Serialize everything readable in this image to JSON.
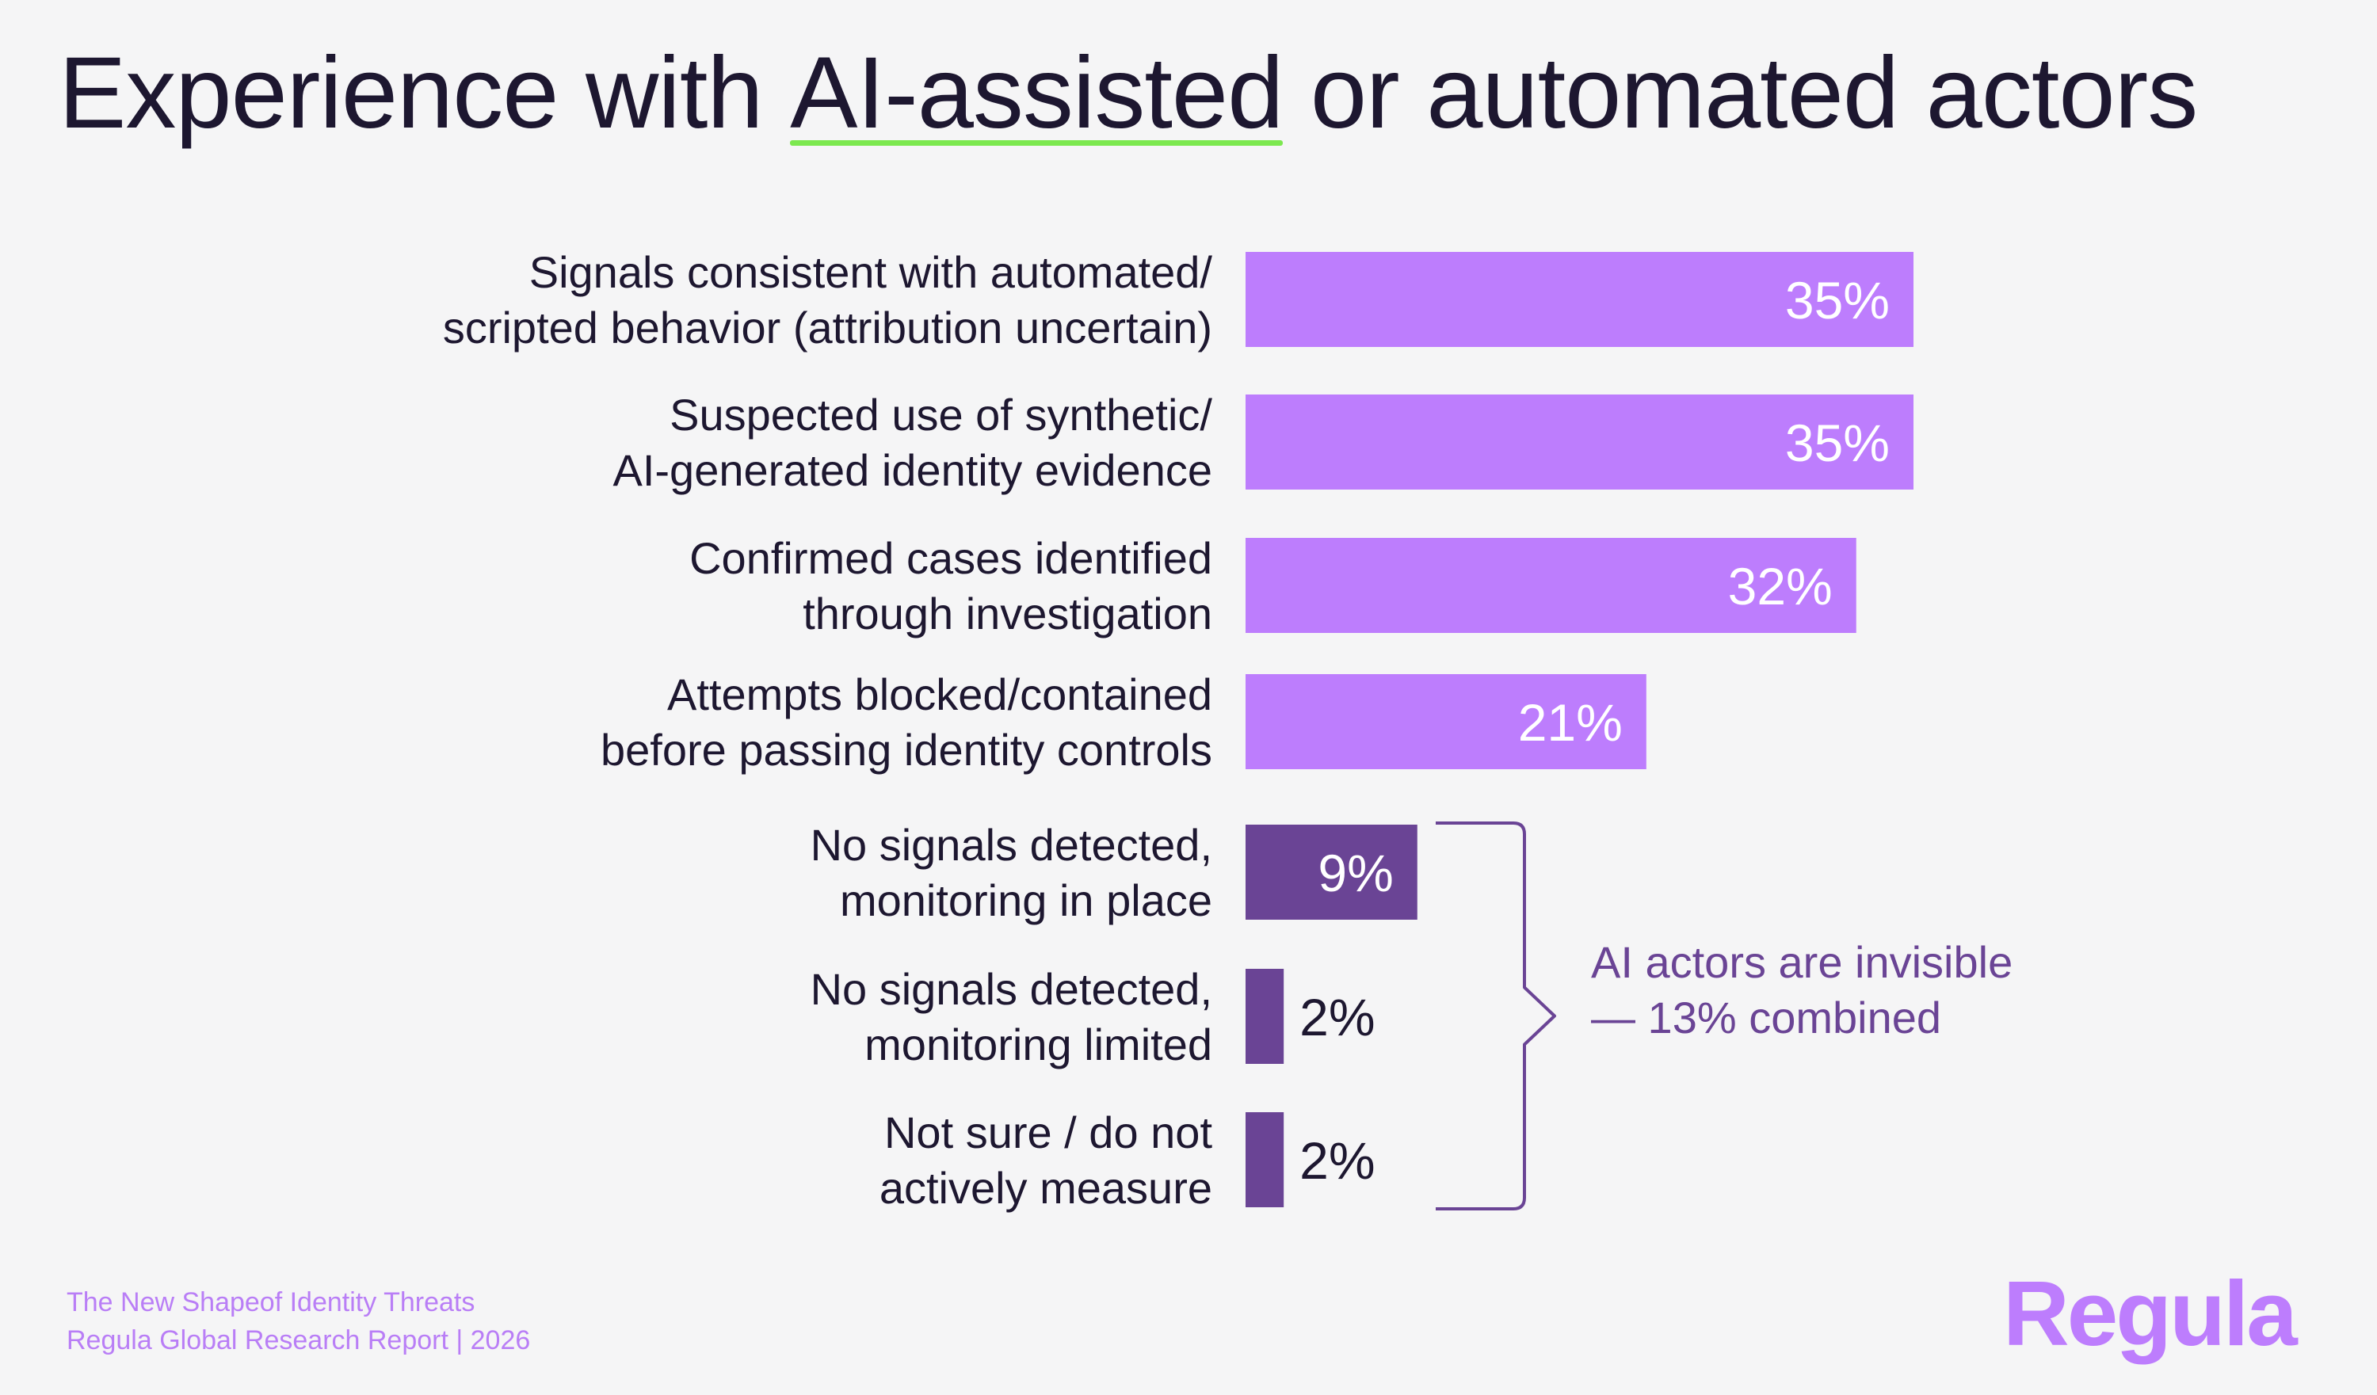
{
  "title": {
    "before": "Experience with ",
    "highlight": "AI-assisted",
    "after": " or automated actors"
  },
  "chart_data": {
    "type": "bar",
    "orientation": "horizontal",
    "categories": [
      [
        "Signals consistent with automated/",
        "scripted behavior (attribution uncertain)"
      ],
      [
        "Suspected use of synthetic/",
        "AI-generated identity evidence"
      ],
      [
        "Confirmed cases identified",
        "through investigation"
      ],
      [
        "Attempts blocked/contained",
        "before passing identity controls"
      ],
      [
        "No signals detected,",
        "monitoring in place"
      ],
      [
        "No signals detected,",
        "monitoring limited"
      ],
      [
        "Not sure / do not",
        "actively measure"
      ]
    ],
    "values": [
      35,
      35,
      32,
      21,
      9,
      2,
      2
    ],
    "value_labels": [
      "35%",
      "35%",
      "32%",
      "21%",
      "9%",
      "2%",
      "2%"
    ],
    "colors": {
      "primary": "#bd7dfd",
      "invisible_group": "#6a4495",
      "bracket": "#6a4495"
    },
    "group_colors": [
      "primary",
      "primary",
      "primary",
      "primary",
      "invisible_group",
      "invisible_group",
      "invisible_group"
    ],
    "xlim": [
      0,
      35
    ],
    "grid": false,
    "legend": "none",
    "bracket_indices": [
      4,
      5,
      6
    ]
  },
  "callout": {
    "text": "AI actors are invisible — 13% combined"
  },
  "footer": {
    "line1": "The New Shapeof Identity Threats",
    "line2": "Regula Global Research Report | 2026"
  },
  "logo": {
    "text": "Regula"
  }
}
